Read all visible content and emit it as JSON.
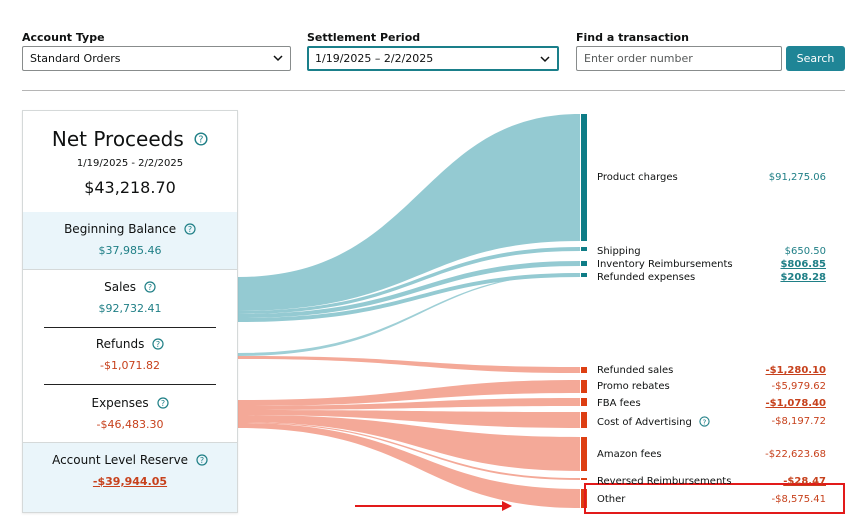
{
  "filters": {
    "account_type": {
      "label": "Account Type",
      "value": "Standard Orders"
    },
    "settlement_period": {
      "label": "Settlement Period",
      "value": "1/19/2025 – 2/2/2025"
    },
    "find_transaction": {
      "label": "Find a transaction",
      "placeholder": "Enter order number"
    },
    "search_label": "Search"
  },
  "summary": {
    "title": "Net Proceeds",
    "date_range": "1/19/2025 - 2/2/2025",
    "total": "$43,218.70",
    "beginning_balance": {
      "label": "Beginning Balance",
      "value": "$37,985.46"
    },
    "sales": {
      "label": "Sales",
      "value": "$92,732.41"
    },
    "refunds": {
      "label": "Refunds",
      "value": "-$1,071.82"
    },
    "expenses": {
      "label": "Expenses",
      "value": "-$46,483.30"
    },
    "reserve": {
      "label": "Account Level Reserve",
      "value": "-$39,944.05"
    }
  },
  "breakdown": {
    "sales_items": [
      {
        "label": "Product charges",
        "value": "$91,275.06"
      },
      {
        "label": "Shipping",
        "value": "$650.50"
      },
      {
        "label": "Inventory Reimbursements",
        "value": "$806.85"
      },
      {
        "label": "Refunded expenses",
        "value": "$208.28"
      }
    ],
    "expense_items": [
      {
        "label": "Refunded sales",
        "value": "-$1,280.10"
      },
      {
        "label": "Promo rebates",
        "value": "-$5,979.62"
      },
      {
        "label": "FBA fees",
        "value": "-$1,078.40"
      },
      {
        "label": "Cost of Advertising",
        "value": "-$8,197.72"
      },
      {
        "label": "Amazon fees",
        "value": "-$22,623.68"
      },
      {
        "label": "Reversed Reimbursements",
        "value": "-$28.47"
      },
      {
        "label": "Other",
        "value": "-$8,575.41"
      }
    ]
  },
  "colors": {
    "teal_flow": "#94cad2",
    "teal_bar": "#0e7c86",
    "salmon_flow": "#f4a998",
    "red_bar": "#dd3e12",
    "highlight": "#e21a1a"
  }
}
